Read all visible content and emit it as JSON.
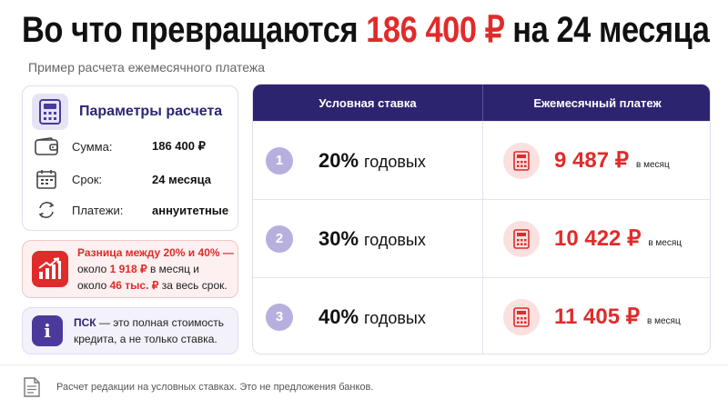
{
  "header": {
    "title_part1": "Во что превращаются ",
    "title_amount": "186 400 ₽",
    "title_part2": " на 24 месяца",
    "subtitle": "Пример расчета ежемесячного платежа"
  },
  "params": {
    "title": "Параметры расчета",
    "rows": [
      {
        "label": "Сумма:",
        "value": "186 400 ₽",
        "icon": "wallet-icon"
      },
      {
        "label": "Срок:",
        "value": "24 месяца",
        "icon": "calendar-icon"
      },
      {
        "label": "Платежи:",
        "value": "аннуитетные",
        "icon": "refresh-icon"
      }
    ]
  },
  "difference": {
    "line1": "Разница между 20% и 40% —",
    "line2_pre": "около ",
    "line2_val": "1 918 ₽",
    "line2_post": " в месяц и",
    "line3_pre": "около ",
    "line3_val": "46 тыс. ₽",
    "line3_post": " за весь срок."
  },
  "psk": {
    "term": "ПСК",
    "line1_rest": " — это полная стоимость",
    "line2": "кредита, а не только ставка."
  },
  "table": {
    "col1": "Условная ставка",
    "col2": "Ежемесячный платеж",
    "rows": [
      {
        "n": "1",
        "rate": "20%",
        "rate_unit": "годовых",
        "payment": "9 487 ₽",
        "payment_unit": "в месяц"
      },
      {
        "n": "2",
        "rate": "30%",
        "rate_unit": "годовых",
        "payment": "10 422 ₽",
        "payment_unit": "в месяц"
      },
      {
        "n": "3",
        "rate": "40%",
        "rate_unit": "годовых",
        "payment": "11 405 ₽",
        "payment_unit": "в месяц"
      }
    ]
  },
  "footer": {
    "note": "Расчет редакции на условных ставках. Это не предложения банков."
  },
  "colors": {
    "accent_red": "#e02b2b",
    "brand_purple": "#2d2470",
    "badge_lavender": "#b7b0de"
  }
}
